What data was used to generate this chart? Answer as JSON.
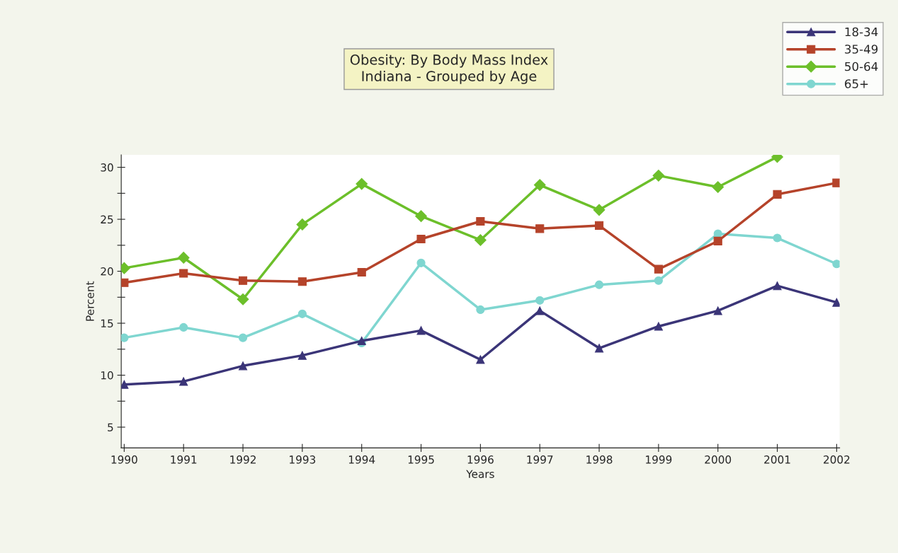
{
  "chart_data": {
    "type": "line",
    "title": "Obesity: By Body Mass Index\nIndiana - Grouped by Age",
    "xlabel": "Years",
    "ylabel": "Percent",
    "categories": [
      "1990",
      "1991",
      "1992",
      "1993",
      "1994",
      "1995",
      "1996",
      "1997",
      "1998",
      "1999",
      "2000",
      "2001",
      "2002"
    ],
    "series": [
      {
        "name": "18-34",
        "color": "#3b3578",
        "marker": "triangle",
        "values": [
          9.1,
          9.4,
          10.9,
          11.9,
          13.3,
          14.3,
          11.5,
          16.2,
          12.6,
          14.7,
          16.2,
          18.6,
          17.0
        ]
      },
      {
        "name": "35-49",
        "color": "#b5432a",
        "marker": "square",
        "values": [
          18.9,
          19.8,
          19.1,
          19.0,
          19.9,
          23.1,
          24.8,
          24.1,
          24.4,
          20.2,
          22.9,
          27.4,
          28.5
        ]
      },
      {
        "name": "50-64",
        "color": "#6cbf2a",
        "marker": "diamond",
        "values": [
          20.3,
          21.3,
          17.3,
          24.5,
          28.4,
          25.3,
          23.0,
          28.3,
          25.9,
          29.2,
          28.1,
          31.0,
          null
        ]
      },
      {
        "name": "65+",
        "color": "#7fd6d0",
        "marker": "circle",
        "values": [
          13.6,
          14.6,
          13.6,
          15.9,
          13.1,
          20.8,
          16.3,
          17.2,
          18.7,
          19.1,
          23.6,
          23.2,
          20.7
        ]
      }
    ],
    "ylim": [
      3,
      31.2
    ],
    "yticks": [
      5,
      {
        "value": 7.5,
        "label": null
      },
      10,
      {
        "value": 12.5,
        "label": null
      },
      15,
      {
        "value": 17.5,
        "label": null
      },
      20,
      {
        "value": 22.5,
        "label": null
      },
      25,
      {
        "value": 27.5,
        "label": null
      },
      30
    ],
    "grid": false,
    "legend": "top right",
    "line_style": "solid"
  }
}
